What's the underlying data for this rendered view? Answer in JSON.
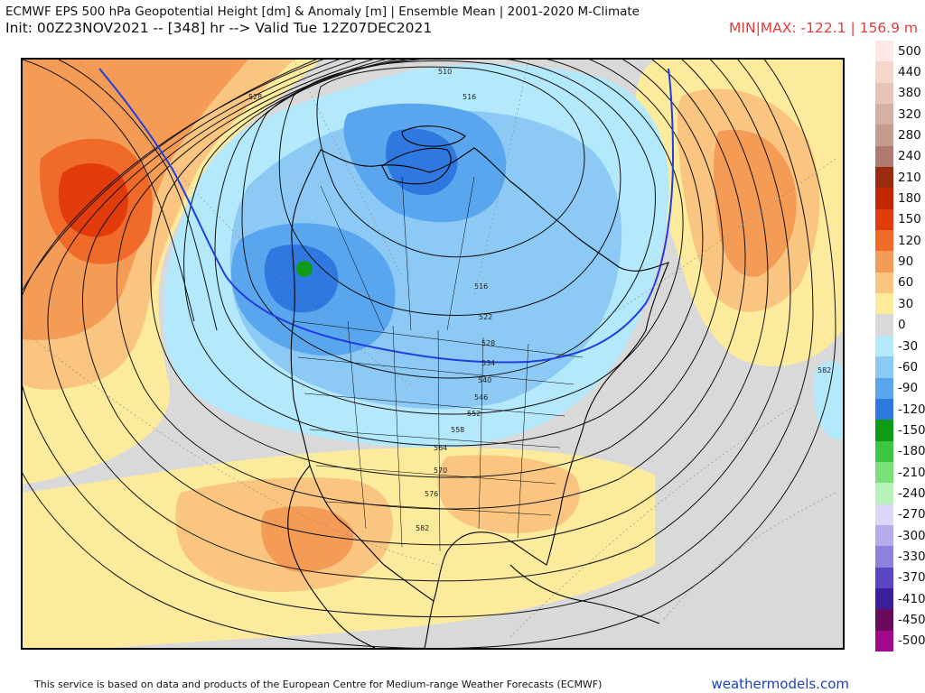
{
  "header": {
    "title": "ECMWF EPS 500 hPa Geopotential Height [dm] & Anomaly [m] | Ensemble Mean | 2001-2020 M-Climate",
    "init_line": "Init: 00Z23NOV2021 -- [348] hr --> Valid Tue 12Z07DEC2021",
    "minmax": "MIN|MAX: -122.1 | 156.9 m"
  },
  "map": {
    "contour_labels": [
      "510",
      "516",
      "522",
      "528",
      "534",
      "540",
      "546",
      "552",
      "558",
      "564",
      "570",
      "576",
      "582",
      "528",
      "582"
    ]
  },
  "colorbar": {
    "labels": [
      "500",
      "440",
      "380",
      "320",
      "280",
      "240",
      "210",
      "180",
      "150",
      "120",
      "90",
      "60",
      "30",
      "0",
      "-30",
      "-60",
      "-90",
      "-120",
      "-150",
      "-180",
      "-210",
      "-240",
      "-270",
      "-300",
      "-330",
      "-370",
      "-410",
      "-450",
      "-500"
    ],
    "colors": [
      "#fde9e4",
      "#f5d6cc",
      "#e6c4b8",
      "#d6b0a4",
      "#c49c90",
      "#b07a70",
      "#9a2a10",
      "#c22800",
      "#e23c0c",
      "#f06a2a",
      "#f49b56",
      "#f9c581",
      "#fdeb9d",
      "#d9d9d9",
      "#b4e8fb",
      "#8ccaf5",
      "#5aa6ee",
      "#2f78e0",
      "#0f9a18",
      "#3fc640",
      "#7ae07a",
      "#b8f2b8",
      "#dad8f6",
      "#b4adea",
      "#8c82dc",
      "#5846c4",
      "#3a1e9a",
      "#6a0a5a",
      "#a00a8a"
    ]
  },
  "footer": {
    "note": "This service is based on data and products of the European Centre for Medium-range Weather Forecasts (ECMWF)",
    "brand": "weathermodels.com"
  }
}
